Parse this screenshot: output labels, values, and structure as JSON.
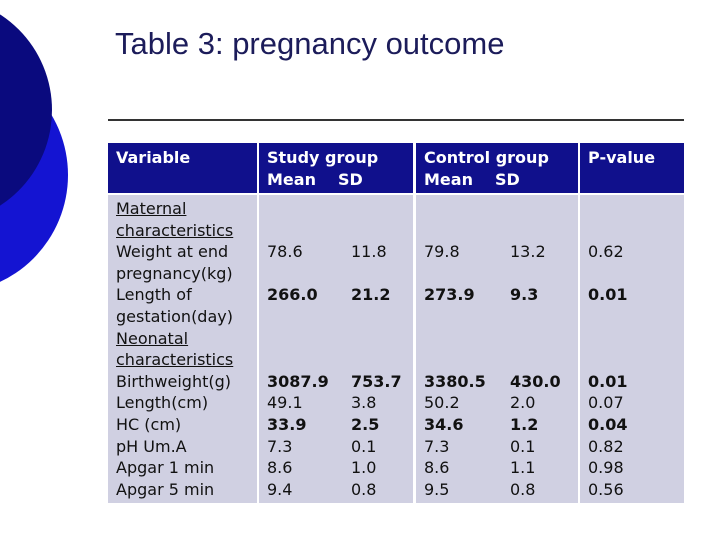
{
  "title": "Table 3: pregnancy outcome",
  "table": {
    "header": {
      "variable": "Variable",
      "study": {
        "group": "Study group",
        "mean": "Mean",
        "sd": "SD"
      },
      "control": {
        "group": "Control group",
        "mean": "Mean",
        "sd": "SD"
      },
      "p_value": "P-value"
    },
    "rows": [
      {
        "section": "Maternal characteristics"
      },
      {
        "variable": "Weight at end pregnancy(kg)",
        "study_mean": "78.6",
        "study_sd": "11.8",
        "control_mean": "79.8",
        "control_sd": "13.2",
        "p_value": "0.62"
      },
      {
        "variable": "Length of gestation(day)",
        "study_mean": "266.0",
        "study_sd": "21.2",
        "control_mean": "273.9",
        "control_sd": "9.3",
        "p_value": "0.01",
        "bold": true
      },
      {
        "section": "Neonatal characteristics"
      },
      {
        "variable": "Birthweight(g)",
        "study_mean": "3087.9",
        "study_sd": "753.7",
        "control_mean": "3380.5",
        "control_sd": "430.0",
        "p_value": "0.01",
        "bold": true
      },
      {
        "variable": "Length(cm)",
        "study_mean": "49.1",
        "study_sd": "3.8",
        "control_mean": "50.2",
        "control_sd": "2.0",
        "p_value": "0.07"
      },
      {
        "variable": "HC (cm)",
        "study_mean": "33.9",
        "study_sd": "2.5",
        "control_mean": "34.6",
        "control_sd": "1.2",
        "p_value": "0.04",
        "bold": true
      },
      {
        "variable": "pH Um.A",
        "study_mean": "7.3",
        "study_sd": "0.1",
        "control_mean": "7.3",
        "control_sd": "0.1",
        "p_value": "0.82"
      },
      {
        "variable": "Apgar 1 min",
        "study_mean": "8.6",
        "study_sd": "1.0",
        "control_mean": "8.6",
        "control_sd": "1.1",
        "p_value": "0.98"
      },
      {
        "variable": "Apgar 5 min",
        "study_mean": "9.4",
        "study_sd": "0.8",
        "control_mean": "9.5",
        "control_sd": "0.8",
        "p_value": "0.56"
      }
    ]
  }
}
